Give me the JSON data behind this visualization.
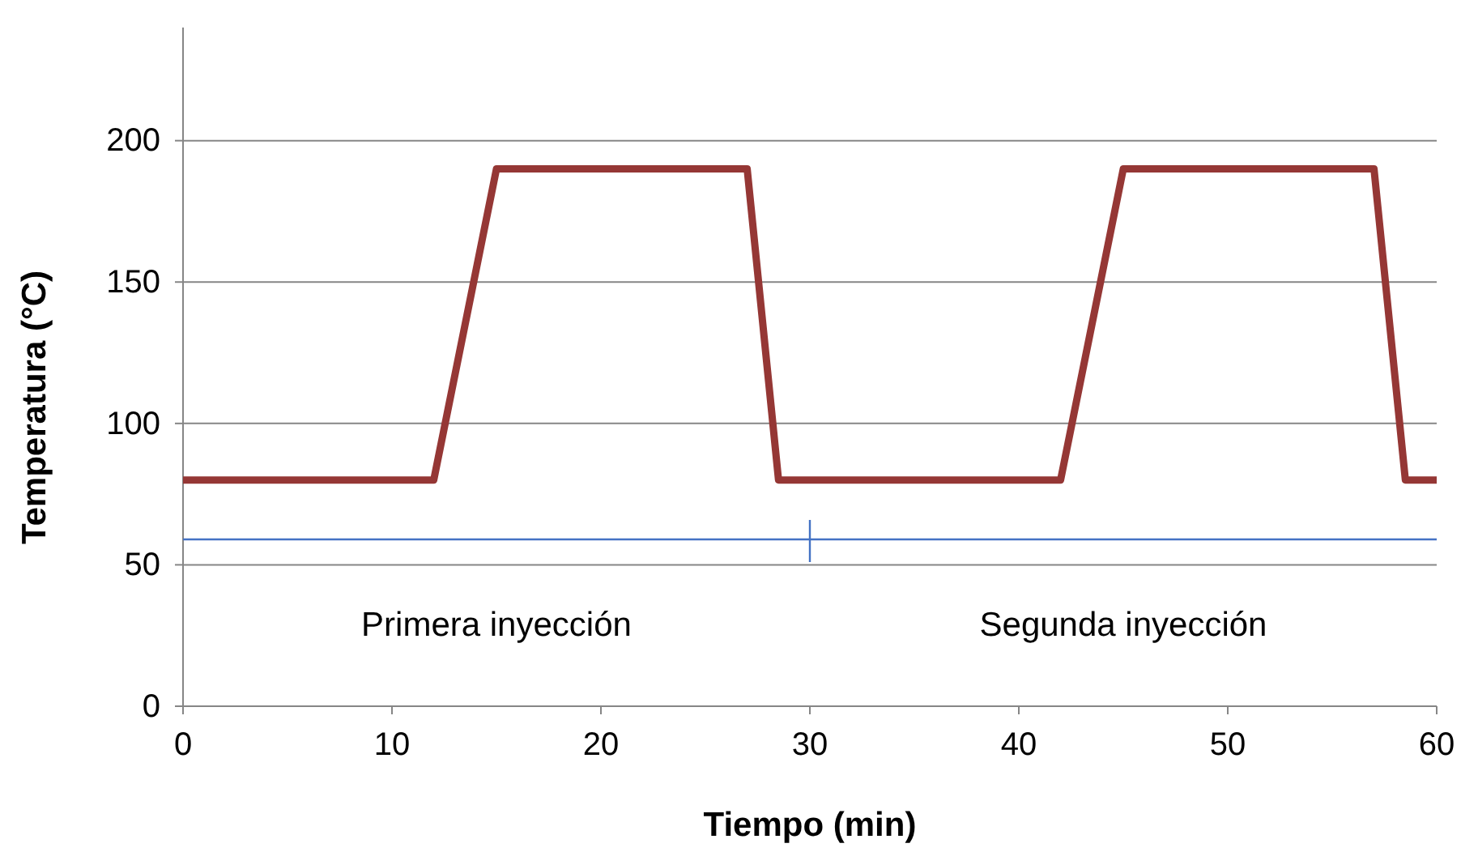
{
  "chart_data": {
    "type": "line",
    "xlabel": "Tiempo (min)",
    "ylabel": "Temperatura (°C)",
    "x": [
      0,
      12,
      15,
      27,
      28.5,
      42,
      45,
      57,
      58.5,
      60
    ],
    "series": [
      {
        "color": "#953735",
        "values": [
          80,
          80,
          190,
          190,
          80,
          80,
          190,
          190,
          80,
          80
        ]
      }
    ],
    "xlim": [
      0,
      60
    ],
    "xticks": [
      0,
      10,
      20,
      30,
      40,
      50,
      60
    ],
    "ylim": [
      0,
      240
    ],
    "yticks": [
      0,
      50,
      100,
      150,
      200
    ],
    "grid": "y",
    "marker": "none",
    "line_style": "solid",
    "ref_lines": [
      {
        "axis": "y",
        "value": 59,
        "color": "#4472c4"
      }
    ],
    "annotations": [
      "Primera inyección",
      "Segunda inyección"
    ]
  }
}
